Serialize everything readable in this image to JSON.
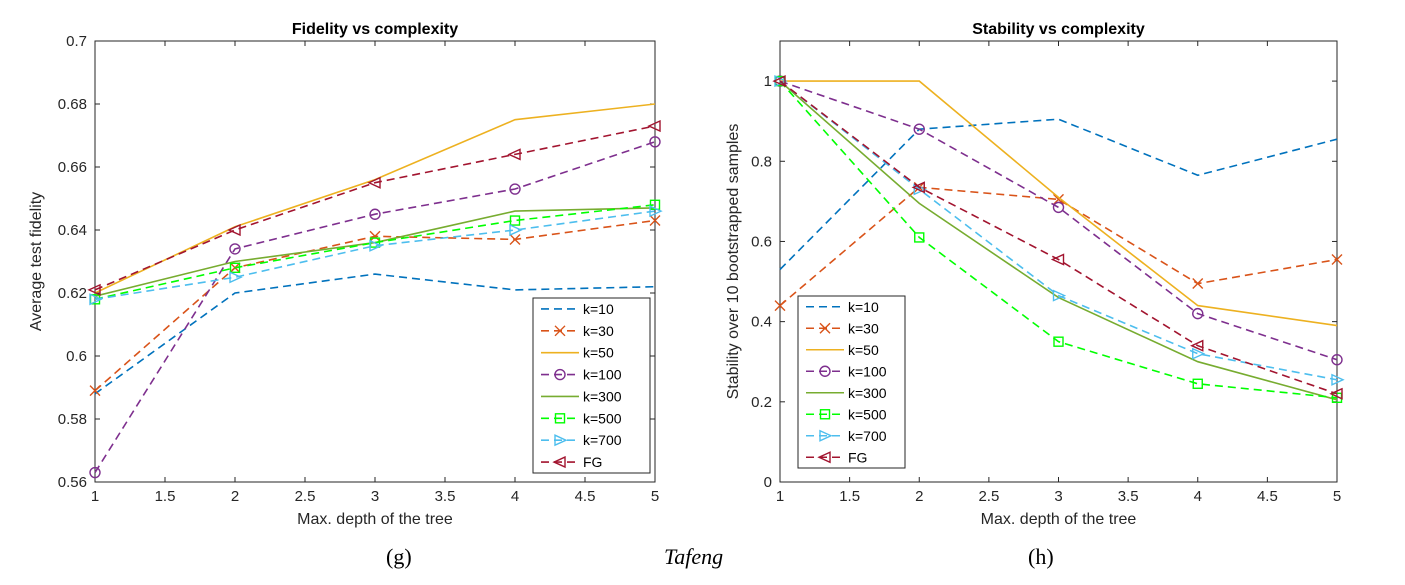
{
  "captions": {
    "left": "(g)",
    "center": "Tafeng",
    "right": "(h)"
  },
  "series_styles": [
    {
      "name": "k=10",
      "color": "#0072BD",
      "dash": "8,5",
      "marker": "none"
    },
    {
      "name": "k=30",
      "color": "#D95319",
      "dash": "8,5",
      "marker": "x"
    },
    {
      "name": "k=50",
      "color": "#EDB120",
      "dash": "",
      "marker": "none"
    },
    {
      "name": "k=100",
      "color": "#7E2F8E",
      "dash": "8,5",
      "marker": "circle"
    },
    {
      "name": "k=300",
      "color": "#77AC30",
      "dash": "",
      "marker": "none"
    },
    {
      "name": "k=500",
      "color": "#00FF00",
      "dash": "8,5",
      "marker": "square"
    },
    {
      "name": "k=700",
      "color": "#4DBEEE",
      "dash": "8,5",
      "marker": "triangle-right"
    },
    {
      "name": "FG",
      "color": "#A2142F",
      "dash": "8,5",
      "marker": "triangle-left"
    }
  ],
  "chart_data": [
    {
      "type": "line",
      "title": "Fidelity vs complexity",
      "xlabel": "Max. depth of the tree",
      "ylabel": "Average test fidelity",
      "xlim": [
        1,
        5
      ],
      "ylim": [
        0.56,
        0.7
      ],
      "xticks": [
        1,
        1.5,
        2,
        2.5,
        3,
        3.5,
        4,
        4.5,
        5
      ],
      "xtick_labels": [
        "1",
        "1.5",
        "2",
        "2.5",
        "3",
        "3.5",
        "4",
        "4.5",
        "5"
      ],
      "yticks": [
        0.56,
        0.58,
        0.6,
        0.62,
        0.64,
        0.66,
        0.68,
        0.7
      ],
      "ytick_labels": [
        "0.56",
        "0.58",
        "0.6",
        "0.62",
        "0.64",
        "0.66",
        "0.68",
        "0.7"
      ],
      "legend_position": "bottom-right",
      "grid": false,
      "x": [
        1,
        2,
        3,
        4,
        5
      ],
      "series": [
        {
          "name": "k=10",
          "values": [
            0.588,
            0.62,
            0.626,
            0.621,
            0.622
          ]
        },
        {
          "name": "k=30",
          "values": [
            0.589,
            0.628,
            0.638,
            0.637,
            0.643
          ]
        },
        {
          "name": "k=50",
          "values": [
            0.62,
            0.641,
            0.656,
            0.675,
            0.68
          ]
        },
        {
          "name": "k=100",
          "values": [
            0.563,
            0.634,
            0.645,
            0.653,
            0.668
          ]
        },
        {
          "name": "k=300",
          "values": [
            0.619,
            0.63,
            0.636,
            0.646,
            0.647
          ]
        },
        {
          "name": "k=500",
          "values": [
            0.618,
            0.628,
            0.636,
            0.643,
            0.648
          ]
        },
        {
          "name": "k=700",
          "values": [
            0.618,
            0.625,
            0.635,
            0.64,
            0.646
          ]
        },
        {
          "name": "FG",
          "values": [
            0.621,
            0.64,
            0.655,
            0.664,
            0.673
          ]
        }
      ]
    },
    {
      "type": "line",
      "title": "Stability vs complexity",
      "xlabel": "Max. depth of the tree",
      "ylabel": "Stability over 10 bootstrapped samples",
      "xlim": [
        1,
        5
      ],
      "ylim": [
        0,
        1.1
      ],
      "xticks": [
        1,
        1.5,
        2,
        2.5,
        3,
        3.5,
        4,
        4.5,
        5
      ],
      "xtick_labels": [
        "1",
        "1.5",
        "2",
        "2.5",
        "3",
        "3.5",
        "4",
        "4.5",
        "5"
      ],
      "yticks": [
        0,
        0.2,
        0.4,
        0.6,
        0.8,
        1
      ],
      "ytick_labels": [
        "0",
        "0.2",
        "0.4",
        "0.6",
        "0.8",
        "1"
      ],
      "legend_position": "bottom-left",
      "grid": false,
      "x": [
        1,
        2,
        3,
        4,
        5
      ],
      "series": [
        {
          "name": "k=10",
          "values": [
            0.53,
            0.88,
            0.905,
            0.765,
            0.855
          ]
        },
        {
          "name": "k=30",
          "values": [
            0.44,
            0.735,
            0.705,
            0.495,
            0.555
          ]
        },
        {
          "name": "k=50",
          "values": [
            1.0,
            1.0,
            0.71,
            0.44,
            0.39
          ]
        },
        {
          "name": "k=100",
          "values": [
            1.0,
            0.88,
            0.685,
            0.42,
            0.305
          ]
        },
        {
          "name": "k=300",
          "values": [
            1.0,
            0.695,
            0.46,
            0.3,
            0.205
          ]
        },
        {
          "name": "k=500",
          "values": [
            1.0,
            0.61,
            0.35,
            0.245,
            0.21
          ]
        },
        {
          "name": "k=700",
          "values": [
            1.0,
            0.73,
            0.465,
            0.32,
            0.255
          ]
        },
        {
          "name": "FG",
          "values": [
            1.0,
            0.735,
            0.555,
            0.34,
            0.22
          ]
        }
      ]
    }
  ]
}
